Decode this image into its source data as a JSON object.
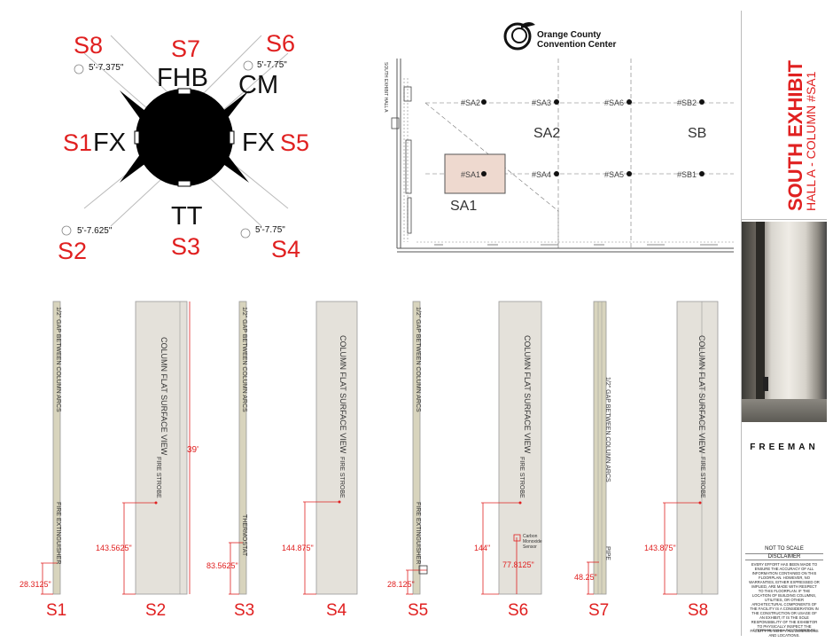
{
  "key_diagram": {
    "sides": [
      {
        "id": "S8",
        "label": "S8",
        "dim": "5'-7.375\""
      },
      {
        "id": "S7",
        "label": "S7",
        "feature": "FHB"
      },
      {
        "id": "S6",
        "label": "S6",
        "dim": "5'-7.75\"",
        "feature": "CM"
      },
      {
        "id": "S1",
        "label": "S1",
        "feature": "FX"
      },
      {
        "id": "S5",
        "label": "S5",
        "feature": "FX"
      },
      {
        "id": "S2",
        "label": "S2",
        "dim": "5'-7.625\""
      },
      {
        "id": "S3",
        "label": "S3",
        "feature": "TT"
      },
      {
        "id": "S4",
        "label": "S4",
        "dim": "5'-7.75\""
      }
    ]
  },
  "floorplan": {
    "logo_line1": "Orange County",
    "logo_line2": "Convention Center",
    "hall_label": "SOUTH EXHIBIT HALL A",
    "columns": [
      "#SA2",
      "#SA3",
      "#SA6",
      "#SB2",
      "#SA1",
      "#SA4",
      "#SA5",
      "#SB1"
    ],
    "zones": [
      "SA2",
      "SB",
      "SA1"
    ]
  },
  "strips": [
    {
      "label": "S1",
      "top_text": "1/2\" GAP BETWEEN COLUMN ARCS",
      "item": "FIRE EXTINGUISHER",
      "dim": "28.3125\""
    },
    {
      "label": "S2",
      "top_text": "COLUMN FLAT SURFACE VIEW",
      "item": "FIRE STROBE",
      "dim": "143.5625\"",
      "height": "39'"
    },
    {
      "label": "S3",
      "top_text": "1/2\" GAP BETWEEN COLUMN ARCS",
      "item": "THERMOSTAT",
      "dim": "83.5625\""
    },
    {
      "label": "S4",
      "top_text": "COLUMN FLAT SURFACE VIEW",
      "item": "FIRE STROBE",
      "dim": "144.875\""
    },
    {
      "label": "S5",
      "top_text": "1/2\" GAP BETWEEN COLUMN ARCS",
      "item": "FIRE EXTINGUISHER",
      "dim": "28.125\""
    },
    {
      "label": "S6",
      "top_text": "COLUMN FLAT SURFACE VIEW",
      "item": "FIRE STROBE",
      "dim": "144\"",
      "item2": "Carbon Monoxide Sensor",
      "dim2": "77.8125\""
    },
    {
      "label": "S7",
      "top_text": "1/2\" GAP BETWEEN COLUMN ARCS",
      "item": "PIPE",
      "dim": "48.25\""
    },
    {
      "label": "S8",
      "top_text": "COLUMN FLAT SURFACE VIEW",
      "item": "FIRE STROBE",
      "dim": "143.875\""
    }
  ],
  "sidebar": {
    "title": "SOUTH EXHIBIT",
    "subtitle": "HALL A - COLUMN #SA1",
    "brand": "FREEMAN",
    "scale_note": "NOT TO SCALE",
    "disclaimer_title": "DISCLAIMER",
    "disclaimer_text": "EVERY EFFORT HAS BEEN MADE TO ENSURE THE ACCURACY OF ALL INFORMATION CONTAINED ON THIS FLOORPLAN. HOWEVER, NO WARRANTIES, EITHER EXPRESSED OR IMPLIED, ARE MADE WITH RESPECT TO THIS FLOORPLAN. IF THE LOCATION OF BUILDING COLUMNS, UTILITIES, OR OTHER ARCHITECTURAL COMPONENTS OF THE FACILITY IS A CONSIDERATION IN THE CONSTRUCTION OR USAGE OF AN EXHIBIT, IT IS THE SOLE RESPONSIBILITY OF THE EXHIBITOR TO PHYSICALLY INSPECT THE FACILITY TO VERIFY ALL DIMENSIONS AND LOCATIONS.",
    "copyright": "© FREEMAN 2019 ALL RIGHTS RESERVED"
  },
  "colors": {
    "accent_red": "#e02020",
    "strip_flat": "#e4e1da",
    "strip_gap": "#d8d4bd",
    "highlight": "#eed9cf"
  }
}
